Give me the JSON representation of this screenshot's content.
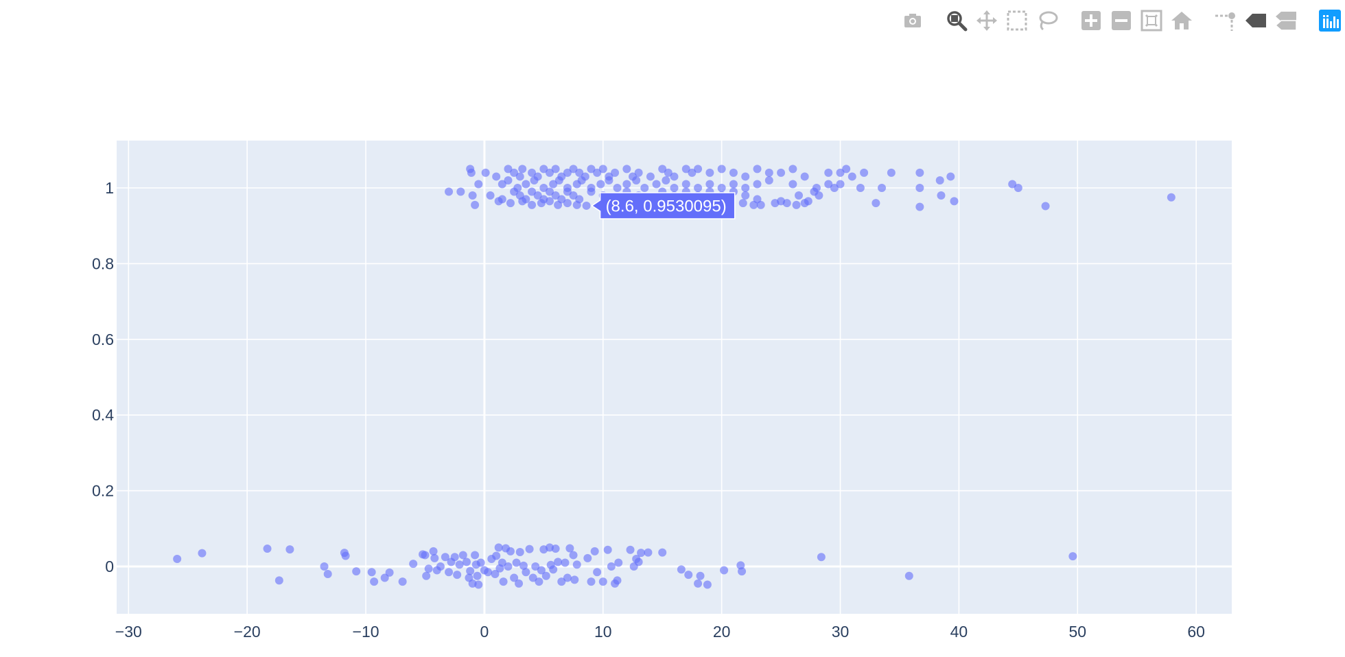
{
  "modebar": {
    "groups": [
      [
        {
          "id": "camera",
          "icon": "camera-icon",
          "active": false
        }
      ],
      [
        {
          "id": "zoom",
          "icon": "zoom-icon",
          "active": true
        },
        {
          "id": "pan",
          "icon": "pan-icon",
          "active": false
        },
        {
          "id": "box-select",
          "icon": "box-select-icon",
          "active": false
        },
        {
          "id": "lasso-select",
          "icon": "lasso-icon",
          "active": false
        }
      ],
      [
        {
          "id": "zoom-in",
          "icon": "zoom-in-icon",
          "active": false
        },
        {
          "id": "zoom-out",
          "icon": "zoom-out-icon",
          "active": false
        },
        {
          "id": "autoscale",
          "icon": "autoscale-icon",
          "active": false
        },
        {
          "id": "reset-axes",
          "icon": "home-icon",
          "active": false
        }
      ],
      [
        {
          "id": "spike-lines",
          "icon": "spikelines-icon",
          "active": false
        },
        {
          "id": "hover-closest",
          "icon": "hover-closest-icon",
          "active": false
        },
        {
          "id": "hover-compare",
          "icon": "hover-compare-icon",
          "active": false
        }
      ],
      [
        {
          "id": "plotly-logo",
          "icon": "plotly-logo-icon",
          "active": false
        }
      ]
    ]
  },
  "chart_data": {
    "type": "scatter",
    "title": "",
    "xlabel": "",
    "ylabel": "",
    "xlim": [
      -31,
      63
    ],
    "ylim": [
      -0.125,
      1.125
    ],
    "x_ticks": [
      -30,
      -20,
      -10,
      0,
      10,
      20,
      30,
      40,
      50,
      60
    ],
    "y_ticks": [
      0,
      0.2,
      0.4,
      0.6,
      0.8,
      1
    ],
    "x_tick_labels": [
      "−30",
      "−20",
      "−10",
      "0",
      "10",
      "20",
      "30",
      "40",
      "50",
      "60"
    ],
    "y_tick_labels": [
      "0",
      "0.2",
      "0.4",
      "0.6",
      "0.8",
      "1"
    ],
    "grid": true,
    "colors": {
      "marker": "#636efa",
      "plot_bg": "#e5ecf6",
      "grid": "#ffffff",
      "tick_text": "#2a3f5f"
    },
    "marker_opacity": 0.6,
    "hover": {
      "x": 8.6,
      "y": 0.9530095,
      "label": "(8.6, 0.9530095)"
    },
    "series": [
      {
        "values_y1": [
          [
            -1.2,
            1.05
          ],
          [
            -1.1,
            1.04
          ],
          [
            0.1,
            1.04
          ],
          [
            1,
            1.03
          ],
          [
            2,
            1.05
          ],
          [
            2.5,
            1.04
          ],
          [
            3,
            1.03
          ],
          [
            3.2,
            1.05
          ],
          [
            4,
            1.04
          ],
          [
            4.5,
            1.03
          ],
          [
            5,
            1.05
          ],
          [
            5.5,
            1.04
          ],
          [
            6,
            1.05
          ],
          [
            6.5,
            1.03
          ],
          [
            7,
            1.04
          ],
          [
            7.5,
            1.05
          ],
          [
            8,
            1.04
          ],
          [
            8.5,
            1.03
          ],
          [
            9,
            1.05
          ],
          [
            9.5,
            1.04
          ],
          [
            10,
            1.05
          ],
          [
            10.5,
            1.03
          ],
          [
            11,
            1.04
          ],
          [
            12,
            1.05
          ],
          [
            12.5,
            1.03
          ],
          [
            13,
            1.04
          ],
          [
            14,
            1.03
          ],
          [
            15,
            1.05
          ],
          [
            15.5,
            1.04
          ],
          [
            16,
            1.03
          ],
          [
            17,
            1.05
          ],
          [
            17.5,
            1.04
          ],
          [
            18,
            1.05
          ],
          [
            19,
            1.04
          ],
          [
            20,
            1.05
          ],
          [
            21,
            1.04
          ],
          [
            22,
            1.03
          ],
          [
            23,
            1.05
          ],
          [
            24,
            1.04
          ],
          [
            25,
            1.04
          ],
          [
            26,
            1.05
          ],
          [
            27,
            1.03
          ],
          [
            29,
            1.04
          ],
          [
            30,
            1.04
          ],
          [
            30.5,
            1.05
          ],
          [
            31,
            1.03
          ],
          [
            32,
            1.04
          ],
          [
            34.3,
            1.04
          ],
          [
            36.7,
            1.04
          ],
          [
            39.3,
            1.03
          ],
          [
            -0.5,
            1.01
          ],
          [
            1.5,
            1.01
          ],
          [
            2,
            1.02
          ],
          [
            2.8,
            1.0
          ],
          [
            3.5,
            1.01
          ],
          [
            4.2,
            1.02
          ],
          [
            5,
            1.0
          ],
          [
            5.8,
            1.01
          ],
          [
            6.3,
            1.02
          ],
          [
            7,
            1.0
          ],
          [
            7.8,
            1.01
          ],
          [
            8.2,
            1.02
          ],
          [
            9,
            1.0
          ],
          [
            9.8,
            1.01
          ],
          [
            10.5,
            1.02
          ],
          [
            11.2,
            1.0
          ],
          [
            12,
            1.01
          ],
          [
            12.8,
            1.02
          ],
          [
            13.5,
            1.0
          ],
          [
            14.5,
            1.01
          ],
          [
            15.3,
            1.02
          ],
          [
            16,
            1.0
          ],
          [
            17,
            1.01
          ],
          [
            18,
            1.0
          ],
          [
            19,
            1.01
          ],
          [
            20,
            1.0
          ],
          [
            21,
            1.01
          ],
          [
            22,
            1.0
          ],
          [
            23,
            1.01
          ],
          [
            24,
            1.02
          ],
          [
            26,
            1.01
          ],
          [
            28,
            1.0
          ],
          [
            29,
            1.01
          ],
          [
            29.5,
            1.0
          ],
          [
            30,
            1.01
          ],
          [
            31.7,
            1.0
          ],
          [
            33.5,
            1.0
          ],
          [
            36.7,
            1.0
          ],
          [
            38.4,
            1.02
          ],
          [
            44.5,
            1.01
          ],
          [
            45,
            1.0
          ],
          [
            -3,
            0.99
          ],
          [
            -2,
            0.99
          ],
          [
            -1,
            0.98
          ],
          [
            0.5,
            0.98
          ],
          [
            1.5,
            0.97
          ],
          [
            2.5,
            0.99
          ],
          [
            3,
            0.98
          ],
          [
            3.5,
            0.97
          ],
          [
            4,
            0.99
          ],
          [
            4.5,
            0.98
          ],
          [
            5,
            0.97
          ],
          [
            5.5,
            0.99
          ],
          [
            6,
            0.98
          ],
          [
            6.5,
            0.97
          ],
          [
            7,
            0.99
          ],
          [
            7.5,
            0.98
          ],
          [
            8,
            0.97
          ],
          [
            9,
            0.99
          ],
          [
            10,
            0.98
          ],
          [
            11,
            0.97
          ],
          [
            12,
            0.99
          ],
          [
            13,
            0.98
          ],
          [
            14,
            0.97
          ],
          [
            15,
            0.99
          ],
          [
            16,
            0.98
          ],
          [
            17,
            0.99
          ],
          [
            18,
            0.98
          ],
          [
            19,
            0.99
          ],
          [
            20,
            0.98
          ],
          [
            21,
            0.99
          ],
          [
            22,
            0.98
          ],
          [
            23,
            0.97
          ],
          [
            26.5,
            0.98
          ],
          [
            27.8,
            0.99
          ],
          [
            28.2,
            0.98
          ],
          [
            38.5,
            0.98
          ],
          [
            -0.8,
            0.955
          ],
          [
            1.2,
            0.965
          ],
          [
            2.2,
            0.96
          ],
          [
            3.2,
            0.965
          ],
          [
            4,
            0.955
          ],
          [
            4.8,
            0.96
          ],
          [
            5.5,
            0.965
          ],
          [
            6.2,
            0.955
          ],
          [
            7,
            0.96
          ],
          [
            7.8,
            0.955
          ],
          [
            8.6,
            0.953
          ],
          [
            21.8,
            0.96
          ],
          [
            22.7,
            0.955
          ],
          [
            23.3,
            0.955
          ],
          [
            24.5,
            0.96
          ],
          [
            25,
            0.965
          ],
          [
            25.5,
            0.96
          ],
          [
            26.3,
            0.955
          ],
          [
            27,
            0.96
          ],
          [
            27.3,
            0.965
          ],
          [
            33,
            0.96
          ],
          [
            36.7,
            0.95
          ],
          [
            39.6,
            0.965
          ],
          [
            47.3,
            0.952
          ],
          [
            57.9,
            0.975
          ]
        ],
        "values_y0": [
          [
            -25.9,
            0.02
          ],
          [
            -23.8,
            0.035
          ],
          [
            -18.3,
            0.047
          ],
          [
            -17.3,
            -0.037
          ],
          [
            -16.4,
            0.045
          ],
          [
            -13.5,
            0.0
          ],
          [
            -13.2,
            -0.02
          ],
          [
            -11.8,
            0.036
          ],
          [
            -11.7,
            0.028
          ],
          [
            -10.8,
            -0.013
          ],
          [
            -9.5,
            -0.015
          ],
          [
            -9.3,
            -0.04
          ],
          [
            -8.4,
            -0.03
          ],
          [
            -8,
            -0.016
          ],
          [
            -6.9,
            -0.04
          ],
          [
            -6,
            0.007
          ],
          [
            -5.2,
            0.032
          ],
          [
            -5,
            0.03
          ],
          [
            -4.9,
            -0.025
          ],
          [
            -4.7,
            -0.006
          ],
          [
            -4.3,
            0.04
          ],
          [
            -4.2,
            0.022
          ],
          [
            -4,
            -0.01
          ],
          [
            -3.7,
            0.0
          ],
          [
            -3.3,
            0.025
          ],
          [
            -3,
            -0.015
          ],
          [
            -2.8,
            0.012
          ],
          [
            -2.5,
            0.025
          ],
          [
            -2.3,
            -0.022
          ],
          [
            -2.1,
            0.005
          ],
          [
            -1.8,
            0.03
          ],
          [
            -1.5,
            0.012
          ],
          [
            -1.3,
            -0.03
          ],
          [
            -1.2,
            -0.012
          ],
          [
            -1,
            -0.045
          ],
          [
            -0.8,
            0.03
          ],
          [
            -0.7,
            0.005
          ],
          [
            -0.6,
            -0.025
          ],
          [
            -0.5,
            -0.048
          ],
          [
            -0.3,
            0.01
          ],
          [
            0,
            -0.01
          ],
          [
            0.3,
            -0.015
          ],
          [
            0.6,
            0.02
          ],
          [
            0.9,
            -0.02
          ],
          [
            1,
            0.028
          ],
          [
            1.2,
            0.05
          ],
          [
            1.3,
            -0.005
          ],
          [
            1.5,
            0.01
          ],
          [
            1.6,
            -0.04
          ],
          [
            1.8,
            0.048
          ],
          [
            2,
            0.0
          ],
          [
            2.2,
            0.04
          ],
          [
            2.5,
            -0.03
          ],
          [
            2.7,
            0.01
          ],
          [
            2.9,
            -0.045
          ],
          [
            3,
            0.038
          ],
          [
            3.3,
            0.002
          ],
          [
            3.5,
            -0.015
          ],
          [
            3.8,
            0.046
          ],
          [
            4.1,
            -0.03
          ],
          [
            4.3,
            0.0
          ],
          [
            4.6,
            -0.04
          ],
          [
            4.8,
            -0.01
          ],
          [
            5,
            0.045
          ],
          [
            5.2,
            -0.025
          ],
          [
            5.5,
            0.05
          ],
          [
            5.6,
            0.004
          ],
          [
            5.8,
            -0.008
          ],
          [
            6,
            0.047
          ],
          [
            6.2,
            0.012
          ],
          [
            6.5,
            -0.04
          ],
          [
            6.8,
            0.01
          ],
          [
            7,
            -0.03
          ],
          [
            7.2,
            0.048
          ],
          [
            7.5,
            0.03
          ],
          [
            7.6,
            -0.035
          ],
          [
            7.8,
            0.005
          ],
          [
            8.7,
            0.022
          ],
          [
            9,
            -0.04
          ],
          [
            9.3,
            0.04
          ],
          [
            9.5,
            -0.015
          ],
          [
            10,
            -0.04
          ],
          [
            10.4,
            0.044
          ],
          [
            10.7,
            0.0
          ],
          [
            11,
            -0.045
          ],
          [
            11.2,
            -0.037
          ],
          [
            11.3,
            0.01
          ],
          [
            12.3,
            0.044
          ],
          [
            12.6,
            0.0
          ],
          [
            12.8,
            0.02
          ],
          [
            13,
            0.012
          ],
          [
            13.2,
            0.036
          ],
          [
            13.8,
            0.037
          ],
          [
            15,
            0.037
          ],
          [
            16.6,
            -0.008
          ],
          [
            17.2,
            -0.022
          ],
          [
            18,
            -0.045
          ],
          [
            18.2,
            -0.025
          ],
          [
            18.8,
            -0.048
          ],
          [
            20.2,
            -0.01
          ],
          [
            21.6,
            0.003
          ],
          [
            21.7,
            -0.013
          ],
          [
            28.4,
            0.025
          ],
          [
            35.8,
            -0.025
          ],
          [
            49.6,
            0.027
          ]
        ]
      }
    ]
  }
}
